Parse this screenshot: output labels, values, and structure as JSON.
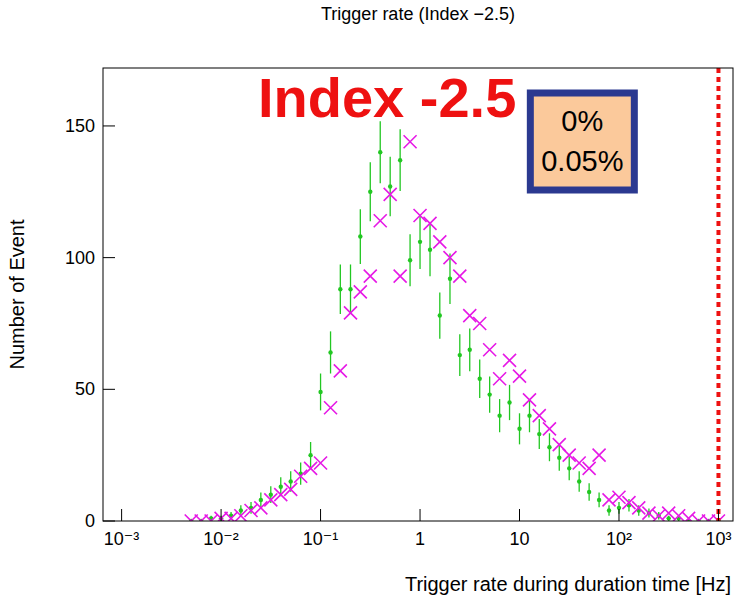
{
  "chart_data": {
    "type": "scatter",
    "title": "Trigger rate (Index −2.5)",
    "x_label": "Trigger rate during duration time [Hz]",
    "y_label": "Number of Event",
    "annotations": [
      "Index -2.5",
      "0%",
      "0.05%"
    ],
    "log": "x",
    "grid": false,
    "xlim": [
      0.00065,
      1400
    ],
    "xticks": [
      {
        "value": 0.001,
        "label": "10⁻³"
      },
      {
        "value": 0.01,
        "label": "10⁻²"
      },
      {
        "value": 0.1,
        "label": "10⁻¹"
      },
      1,
      10,
      {
        "value": 100,
        "label": "10²"
      },
      {
        "value": 1000,
        "label": "10³"
      }
    ],
    "ylim": [
      0,
      172
    ],
    "yticks": [
      0,
      50,
      100,
      150
    ],
    "threshold": 1000,
    "x": [
      0.00501,
      0.00631,
      0.00794,
      0.01,
      0.0126,
      0.0158,
      0.02,
      0.0251,
      0.0316,
      0.0398,
      0.0501,
      0.0631,
      0.0794,
      0.1,
      0.126,
      0.158,
      0.2,
      0.251,
      0.316,
      0.398,
      0.501,
      0.631,
      0.794,
      1,
      1.26,
      1.58,
      2,
      2.51,
      3.16,
      3.98,
      5.01,
      6.31,
      7.94,
      10,
      12.6,
      15.8,
      20,
      25.1,
      31.6,
      39.8,
      50.1,
      63.1,
      79.4,
      100,
      126,
      158,
      200,
      251,
      316,
      398,
      501,
      631,
      794,
      1000
    ],
    "series": [
      {
        "color": "#22c722",
        "marker": "dot",
        "values": [
          0,
          0,
          1,
          1,
          2,
          4,
          5,
          8,
          10,
          13,
          15,
          18,
          25,
          49,
          64,
          88,
          88,
          108,
          125,
          140,
          127,
          137,
          99,
          106,
          103,
          78,
          92,
          63,
          65,
          54,
          48,
          40,
          45,
          35,
          40,
          33,
          28,
          24,
          20,
          15,
          11,
          8,
          4,
          5,
          6,
          4,
          3,
          2,
          1,
          1,
          0,
          0,
          0,
          0
        ],
        "errors": [
          0,
          0,
          1,
          1,
          1.4,
          2,
          2.2,
          2.8,
          3.2,
          3.6,
          3.9,
          4.2,
          5,
          7,
          8,
          9.4,
          9.4,
          10.4,
          11.2,
          11.8,
          11.3,
          11.7,
          9.9,
          10.3,
          10.1,
          8.8,
          9.6,
          7.9,
          8.1,
          7.3,
          6.9,
          6.3,
          6.7,
          5.9,
          6.3,
          5.7,
          5.3,
          4.9,
          4.5,
          3.9,
          3.3,
          2.8,
          2,
          2.2,
          2.4,
          2,
          1.7,
          1.4,
          1,
          1,
          0,
          0,
          0,
          0
        ]
      },
      {
        "color": "#e619e6",
        "marker": "x",
        "values": [
          0,
          0,
          0,
          1,
          1,
          2,
          4,
          5,
          8,
          10,
          12,
          17,
          20,
          22,
          43,
          57,
          79,
          87,
          93,
          114,
          124,
          93,
          144,
          116,
          113,
          106,
          100,
          93,
          78,
          75,
          65,
          54,
          61,
          55,
          46,
          40,
          35,
          29,
          25,
          22,
          20,
          25,
          8,
          9,
          7,
          5,
          3,
          2,
          3,
          2,
          1,
          0,
          0,
          0
        ]
      }
    ]
  }
}
